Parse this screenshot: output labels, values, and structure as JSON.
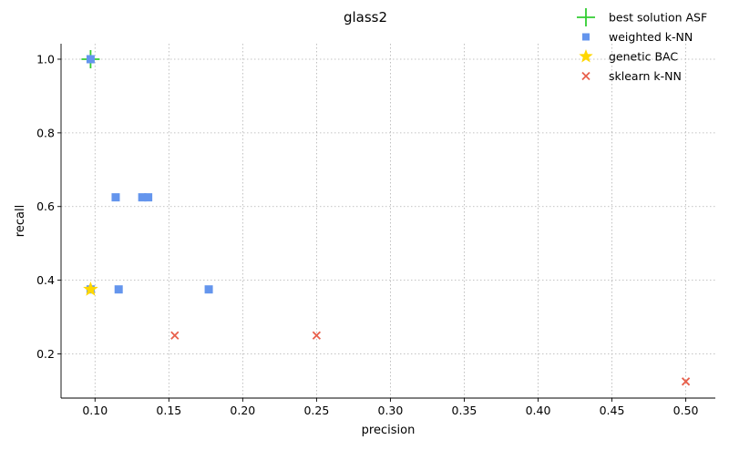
{
  "chart_data": {
    "type": "scatter",
    "title": "glass2",
    "xlabel": "precision",
    "ylabel": "recall",
    "xlim": [
      0.077,
      0.52
    ],
    "ylim": [
      0.08,
      1.042
    ],
    "xticks": [
      0.1,
      0.15,
      0.2,
      0.25,
      0.3,
      0.35,
      0.4,
      0.45,
      0.5
    ],
    "xtick_labels": [
      "0.10",
      "0.15",
      "0.20",
      "0.25",
      "0.30",
      "0.35",
      "0.40",
      "0.45",
      "0.50"
    ],
    "yticks": [
      0.2,
      0.4,
      0.6,
      0.8,
      1.0
    ],
    "ytick_labels": [
      "0.2",
      "0.4",
      "0.6",
      "0.8",
      "1.0"
    ],
    "grid": true,
    "legend_position": "top-right",
    "series": [
      {
        "name": "weighted k-NN",
        "marker": "square",
        "color": "#6495ED",
        "points": [
          {
            "x": 0.097,
            "y": 1.0
          },
          {
            "x": 0.114,
            "y": 0.625
          },
          {
            "x": 0.132,
            "y": 0.625
          },
          {
            "x": 0.136,
            "y": 0.625
          },
          {
            "x": 0.097,
            "y": 0.375
          },
          {
            "x": 0.116,
            "y": 0.375
          },
          {
            "x": 0.177,
            "y": 0.375
          }
        ]
      },
      {
        "name": "genetic BAC",
        "marker": "star",
        "color": "#FFD700",
        "points": [
          {
            "x": 0.097,
            "y": 0.375
          }
        ]
      },
      {
        "name": "sklearn k-NN",
        "marker": "x",
        "color": "#E8604C",
        "points": [
          {
            "x": 0.154,
            "y": 0.25
          },
          {
            "x": 0.25,
            "y": 0.25
          },
          {
            "x": 0.5,
            "y": 0.125
          }
        ]
      },
      {
        "name": "best solution ASF",
        "marker": "plus",
        "color": "#32CD32",
        "points": [
          {
            "x": 0.097,
            "y": 1.0
          }
        ]
      }
    ],
    "legend": [
      "best solution ASF",
      "weighted k-NN",
      "genetic BAC",
      "sklearn k-NN"
    ]
  }
}
